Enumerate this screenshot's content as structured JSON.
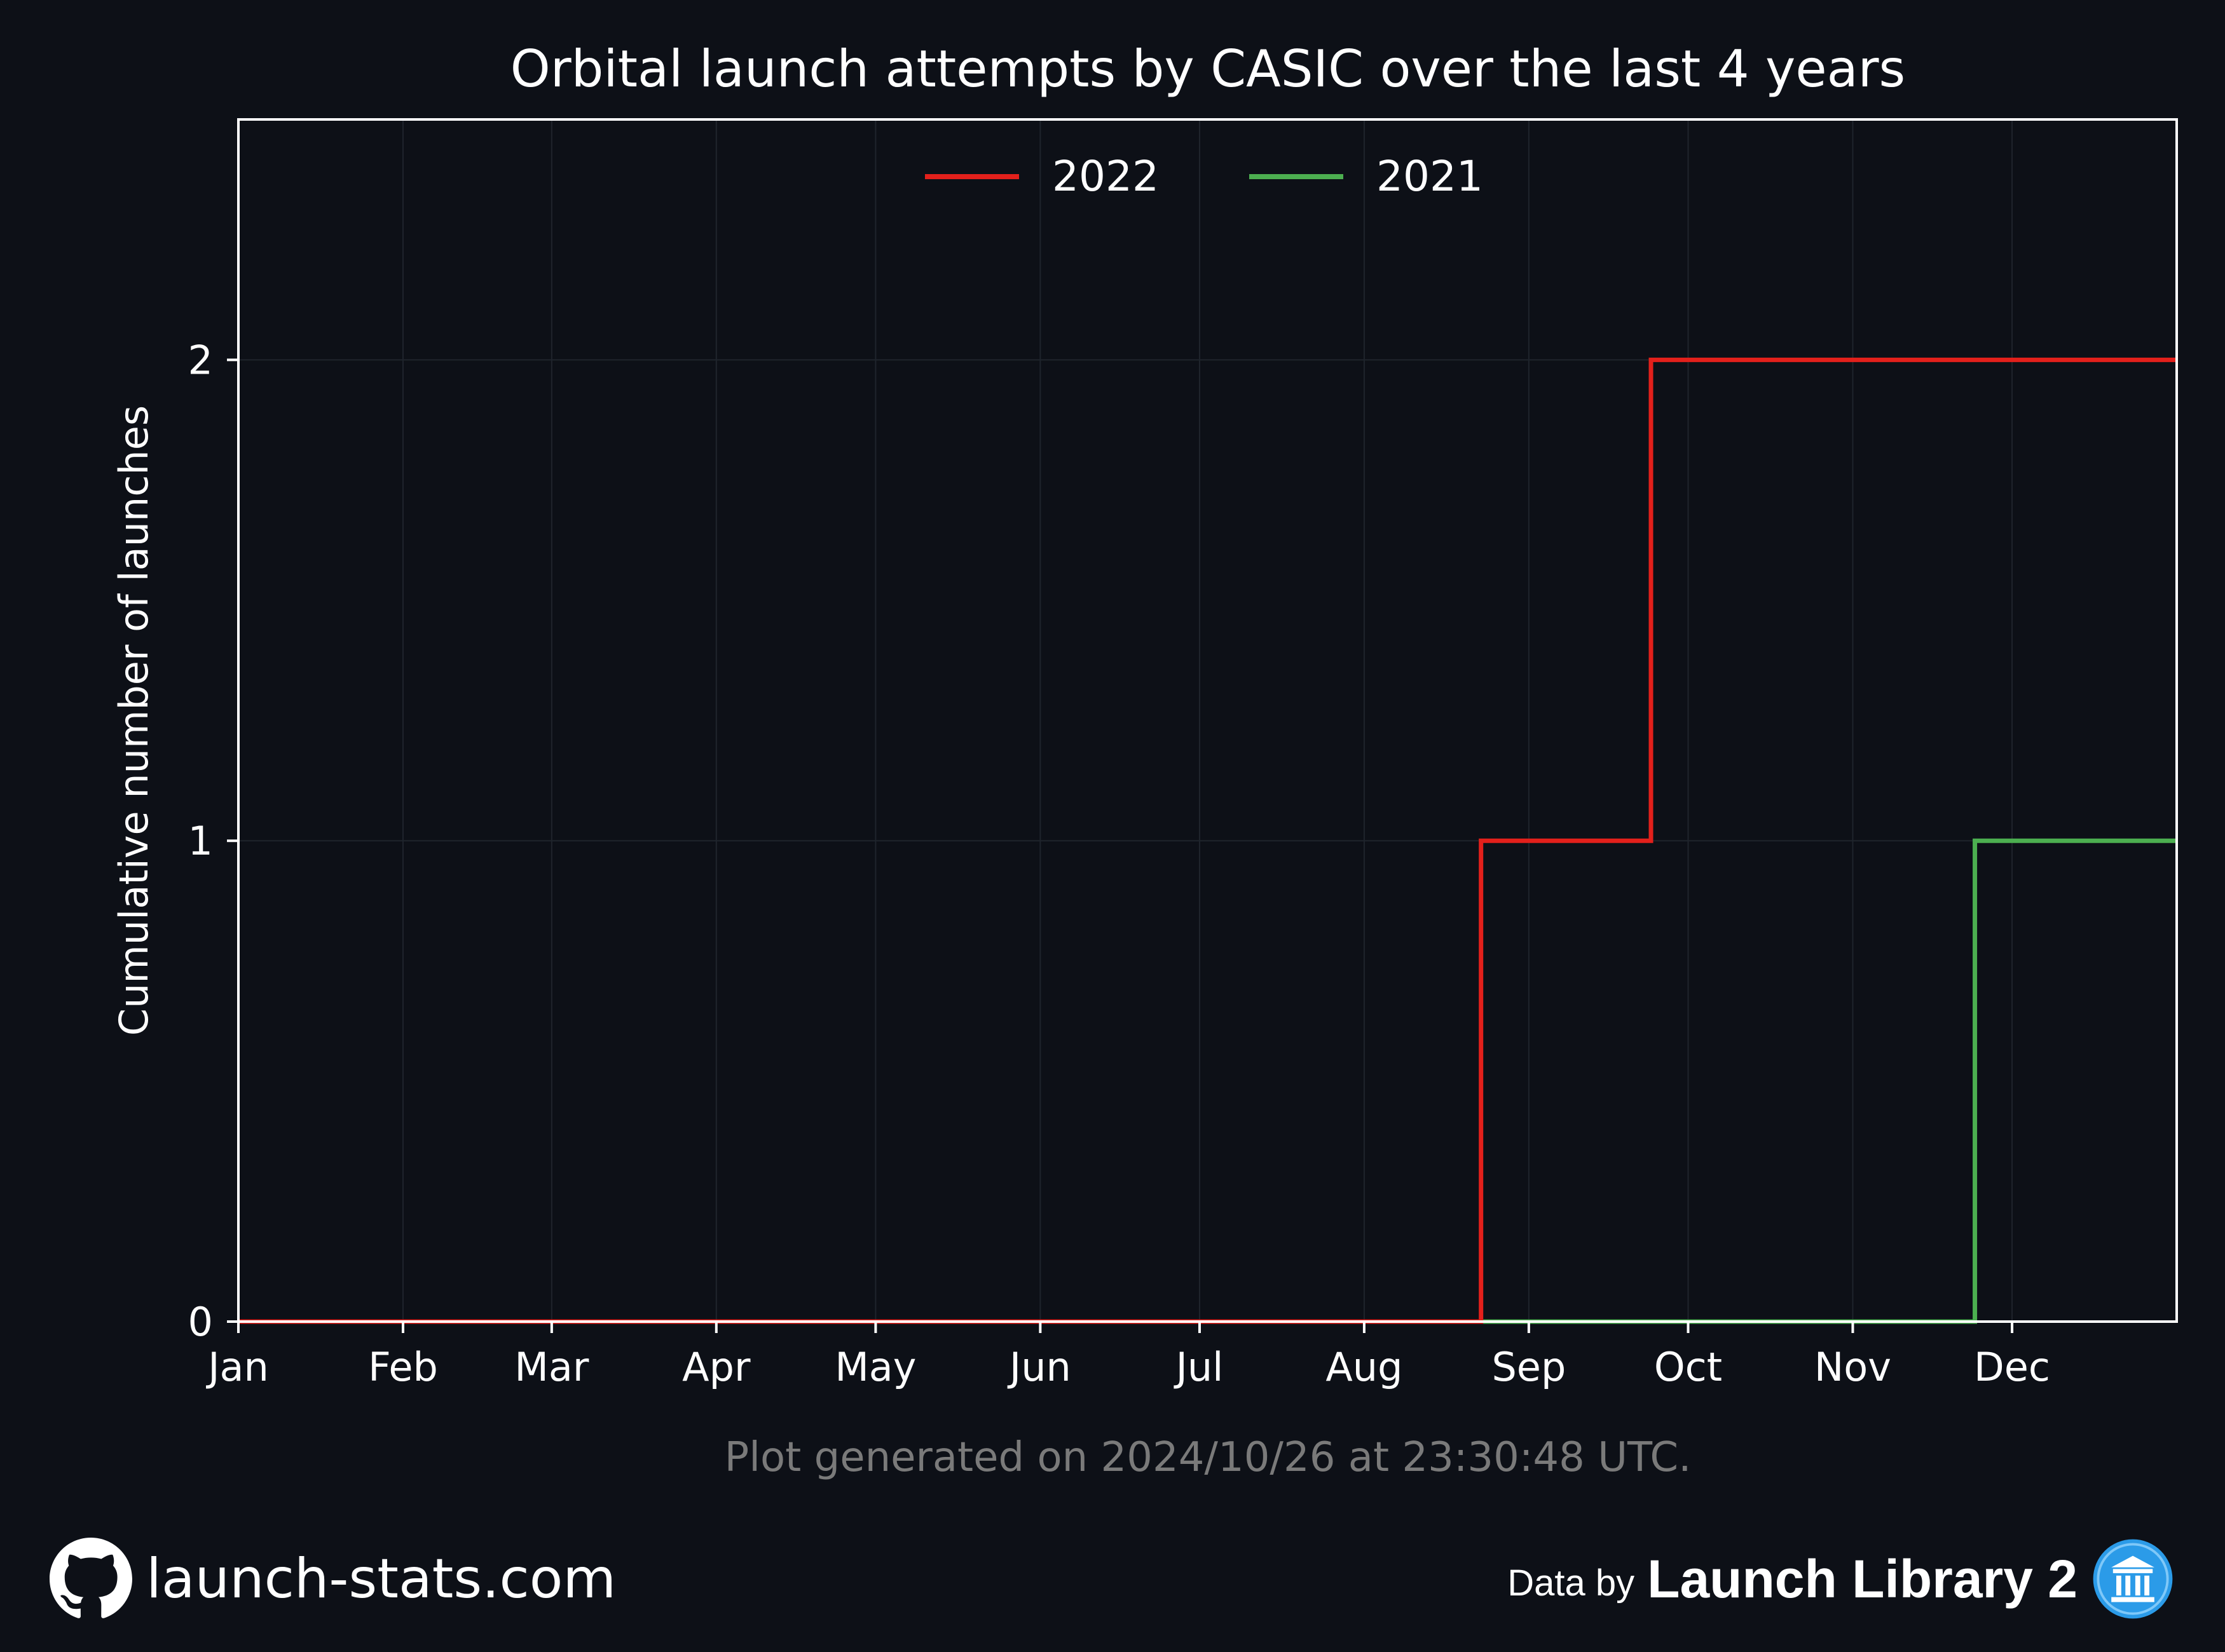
{
  "chart_data": {
    "type": "line",
    "step": true,
    "title": "Orbital launch attempts by CASIC over the last 4 years",
    "xlabel": "",
    "ylabel": "Cumulative number of launches",
    "x_ticks": [
      "Jan",
      "Feb",
      "Mar",
      "Apr",
      "May",
      "Jun",
      "Jul",
      "Aug",
      "Sep",
      "Oct",
      "Nov",
      "Dec"
    ],
    "x_range_days": [
      0,
      365
    ],
    "ylim": [
      0,
      2.5
    ],
    "y_ticks": [
      0,
      1,
      2
    ],
    "grid": true,
    "legend_position": "top-center",
    "series": [
      {
        "name": "2022",
        "color": "#e3201b",
        "steps": [
          {
            "day": 0,
            "value": 0
          },
          {
            "day": 234,
            "value": 1
          },
          {
            "day": 266,
            "value": 2
          },
          {
            "day": 365,
            "value": 2
          }
        ]
      },
      {
        "name": "2021",
        "color": "#4caf50",
        "steps": [
          {
            "day": 0,
            "value": 0
          },
          {
            "day": 327,
            "value": 1
          },
          {
            "day": 365,
            "value": 1
          }
        ]
      }
    ]
  },
  "footnote": "Plot generated on 2024/10/26 at 23:30:48 UTC.",
  "footer": {
    "site": "launch-stats.com",
    "data_by": "Data by",
    "provider": "Launch Library 2"
  },
  "colors": {
    "background": "#0d1017",
    "axes_frame": "#ffffff",
    "grid": "#1f242c",
    "footnote": "#7a7a7a",
    "provider_icon": "#2b9be8"
  }
}
